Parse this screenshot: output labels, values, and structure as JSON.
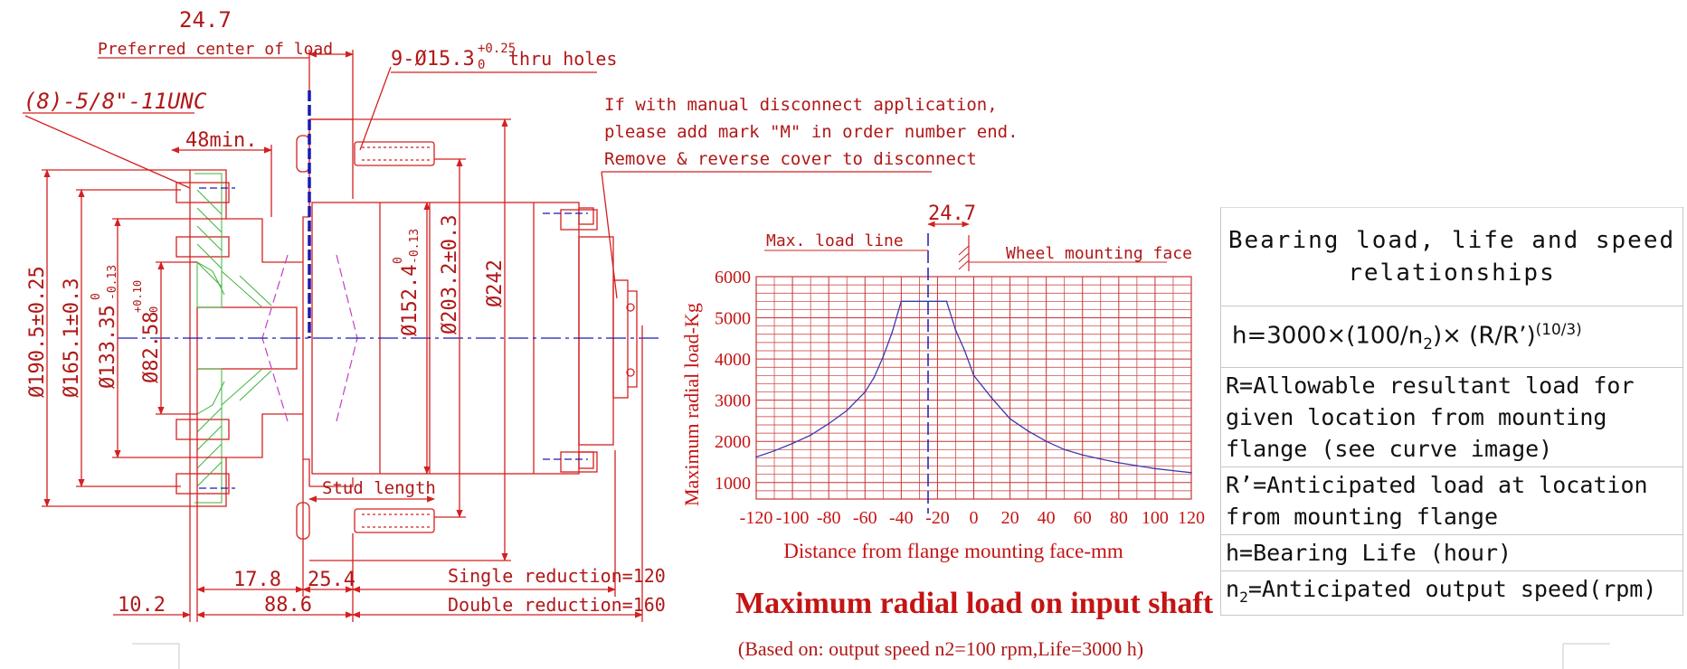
{
  "drawing": {
    "preferred_value": "24.7",
    "preferred_label": "Preferred center of load",
    "holes_callout": "9-Ø15.3",
    "holes_tol_upper": "+0.25",
    "holes_tol_lower": "0",
    "holes_suffix": "thru holes",
    "thread_callout": "(8)-5/8\"-11UNC",
    "min_48": "48min.",
    "manual_note": [
      "If with manual disconnect application,",
      "please add mark \"M\" in order number end.",
      "Remove & reverse cover to disconnect"
    ],
    "dia_190": "Ø190.5±0.25",
    "dia_165": "Ø165.1±0.3",
    "dia_133": "Ø133.35",
    "dia_133_tol_u": "0",
    "dia_133_tol_l": "-0.13",
    "dia_82": "Ø82.58",
    "dia_82_tol_u": "+0.10",
    "dia_82_tol_l": "0",
    "dia_152": "Ø152.4",
    "dia_152_tol_u": "0",
    "dia_152_tol_l": "-0.13",
    "dia_203": "Ø203.2±0.3",
    "dia_242": "Ø242",
    "stud_length": "Stud length",
    "d_17_8": "17.8",
    "d_25_4": "25.4",
    "d_10_2": "10.2",
    "d_88_6": "88.6",
    "single_reduction": "Single reduction=120",
    "double_reduction": "Double reduction=160"
  },
  "chart_data": {
    "type": "line",
    "title": "Maximum radial load on input shaft",
    "subtitle": "(Based on: output speed n2=100 rpm,Life=3000 h)",
    "xlabel": "Distance from flange mounting face-mm",
    "ylabel": "Maximum radial load-Kg",
    "xlim": [
      -120,
      120
    ],
    "ylim": [
      600,
      6000
    ],
    "x_ticks": [
      "-120",
      "-100",
      "-80",
      "-60",
      "-40",
      "-20",
      "0",
      "20",
      "40",
      "60",
      "80",
      "100",
      "120"
    ],
    "y_ticks": [
      "1000",
      "2000",
      "3000",
      "4000",
      "5000",
      "6000"
    ],
    "grid": true,
    "annotations": {
      "max_load_line": "Max. load line",
      "dim": "24.7",
      "wheel_face": "Wheel mounting face"
    },
    "series": [
      {
        "x": [
          -120,
          -110,
          -100,
          -90,
          -80,
          -70,
          -60,
          -55,
          -50,
          -45,
          -40,
          -30,
          -20,
          -15,
          -10,
          -5,
          0,
          10,
          20,
          30,
          40,
          50,
          60,
          70,
          80,
          90,
          100,
          110,
          120
        ],
        "y": [
          1620,
          1770,
          1950,
          2150,
          2430,
          2750,
          3200,
          3550,
          4050,
          4650,
          5400,
          5400,
          5400,
          5400,
          4700,
          4200,
          3600,
          3050,
          2550,
          2250,
          2000,
          1800,
          1670,
          1570,
          1480,
          1410,
          1340,
          1290,
          1240
        ]
      }
    ]
  },
  "table": {
    "title": "Bearing load, life and speed relationships",
    "formula_a": "h=3000×(100/n",
    "formula_sub": "2",
    "formula_b": ")× (R/R’)",
    "formula_sup": "(10/3)",
    "r_def": "R=Allowable resultant load for given location from mounting flange (see curve image)",
    "rp_def": "R’=Anticipated load at location from mounting flange",
    "h_def": "h=Bearing Life (hour)",
    "n2_sym": "n",
    "n2_sub": "2",
    "n2_def": "=Anticipated output speed(rpm)"
  },
  "colors": {
    "line": "#d42020",
    "grid": "#c83232",
    "curve": "#3a3ab0",
    "centerline": "#1a1ab4",
    "hatch": "#3cb43c",
    "magenta": "#c040c0"
  }
}
